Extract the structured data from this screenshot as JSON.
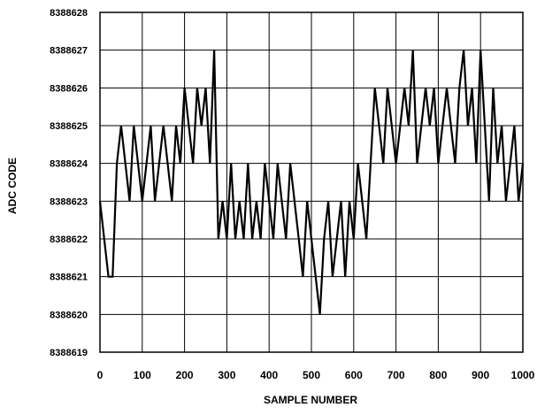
{
  "chart_data": {
    "type": "line",
    "title": "",
    "xlabel": "SAMPLE NUMBER",
    "ylabel": "ADC CODE",
    "xlim": [
      0,
      1000
    ],
    "ylim": [
      8388619,
      8388628
    ],
    "x_ticks": [
      "0",
      "100",
      "200",
      "300",
      "400",
      "500",
      "600",
      "700",
      "800",
      "900",
      "1000"
    ],
    "y_ticks": [
      "8388619",
      "8388620",
      "8388621",
      "8388622",
      "8388623",
      "8388624",
      "8388625",
      "8388626",
      "8388627",
      "8388628"
    ],
    "grid": true,
    "series": [
      {
        "color": "#000000",
        "x": [
          0,
          10,
          20,
          30,
          40,
          50,
          60,
          70,
          80,
          90,
          100,
          110,
          120,
          130,
          140,
          150,
          160,
          170,
          180,
          190,
          200,
          210,
          220,
          230,
          240,
          250,
          260,
          270,
          280,
          290,
          300,
          310,
          320,
          330,
          340,
          350,
          360,
          370,
          380,
          390,
          400,
          410,
          420,
          430,
          440,
          450,
          460,
          470,
          480,
          490,
          500,
          510,
          520,
          530,
          540,
          550,
          560,
          570,
          580,
          590,
          600,
          610,
          620,
          630,
          640,
          650,
          660,
          670,
          680,
          690,
          700,
          710,
          720,
          730,
          740,
          750,
          760,
          770,
          780,
          790,
          800,
          810,
          820,
          830,
          840,
          850,
          860,
          870,
          880,
          890,
          900,
          910,
          920,
          930,
          940,
          950,
          960,
          970,
          980,
          990,
          1000
        ],
        "values": [
          8388623,
          8388622,
          8388621,
          8388621,
          8388624,
          8388625,
          8388624,
          8388623,
          8388625,
          8388624,
          8388623,
          8388624,
          8388625,
          8388623,
          8388624,
          8388625,
          8388624,
          8388623,
          8388625,
          8388624,
          8388626,
          8388625,
          8388624,
          8388626,
          8388625,
          8388626,
          8388624,
          8388627,
          8388622,
          8388623,
          8388622,
          8388624,
          8388622,
          8388623,
          8388622,
          8388624,
          8388622,
          8388623,
          8388622,
          8388624,
          8388623,
          8388622,
          8388624,
          8388623,
          8388622,
          8388624,
          8388623,
          8388622,
          8388621,
          8388623,
          8388622,
          8388621,
          8388620,
          8388622,
          8388623,
          8388621,
          8388622,
          8388623,
          8388621,
          8388623,
          8388622,
          8388624,
          8388623,
          8388622,
          8388624,
          8388626,
          8388625,
          8388624,
          8388626,
          8388625,
          8388624,
          8388625,
          8388626,
          8388625,
          8388627,
          8388624,
          8388625,
          8388626,
          8388625,
          8388626,
          8388624,
          8388625,
          8388626,
          8388625,
          8388624,
          8388626,
          8388627,
          8388625,
          8388626,
          8388624,
          8388627,
          8388625,
          8388623,
          8388626,
          8388624,
          8388625,
          8388623,
          8388624,
          8388625,
          8388623,
          8388624
        ]
      }
    ]
  }
}
